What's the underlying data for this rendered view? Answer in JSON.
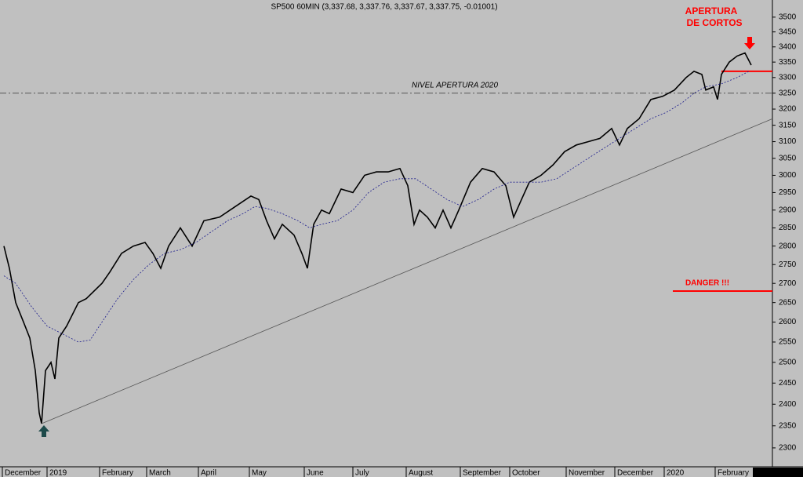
{
  "chart_data": {
    "type": "line",
    "title": "SP500 60MIN (3,337.68, 3,337.76, 3,337.67, 3,337.75, -0.01001)",
    "log_scale": true,
    "grid": false,
    "background": "#c0c0c0",
    "xlim": [
      0,
      985
    ],
    "ylim": [
      2258,
      3559
    ],
    "yticks": [
      2300,
      2350,
      2400,
      2450,
      2500,
      2550,
      2600,
      2650,
      2700,
      2750,
      2800,
      2850,
      2900,
      2950,
      3000,
      3050,
      3100,
      3150,
      3200,
      3250,
      3300,
      3350,
      3400,
      3450,
      3500
    ],
    "xticks": [
      {
        "value": 3,
        "label": "December"
      },
      {
        "value": 60,
        "label": "2019"
      },
      {
        "value": 127,
        "label": "February"
      },
      {
        "value": 187,
        "label": "March"
      },
      {
        "value": 253,
        "label": "April"
      },
      {
        "value": 318,
        "label": "May"
      },
      {
        "value": 388,
        "label": "June"
      },
      {
        "value": 450,
        "label": "July"
      },
      {
        "value": 518,
        "label": "August"
      },
      {
        "value": 587,
        "label": "September"
      },
      {
        "value": 650,
        "label": "October"
      },
      {
        "value": 722,
        "label": "November"
      },
      {
        "value": 784,
        "label": "December"
      },
      {
        "value": 847,
        "label": "2020"
      },
      {
        "value": 912,
        "label": "February"
      }
    ],
    "series": [
      {
        "color": "#000000",
        "style": "solid",
        "x": [
          5,
          12,
          20,
          30,
          38,
          45,
          50,
          53,
          58,
          65,
          70,
          75,
          85,
          100,
          110,
          130,
          140,
          155,
          170,
          185,
          195,
          205,
          215,
          230,
          245,
          260,
          280,
          300,
          320,
          330,
          340,
          350,
          360,
          375,
          385,
          392,
          400,
          410,
          420,
          435,
          450,
          465,
          480,
          495,
          510,
          520,
          528,
          535,
          545,
          555,
          565,
          575,
          585,
          600,
          615,
          630,
          645,
          655,
          665,
          675,
          690,
          705,
          720,
          735,
          750,
          765,
          780,
          790,
          800,
          815,
          830,
          845,
          860,
          875,
          885,
          895,
          900,
          910,
          915,
          920,
          930,
          940,
          950,
          958
        ],
        "values": [
          2800,
          2740,
          2650,
          2600,
          2560,
          2480,
          2380,
          2355,
          2480,
          2500,
          2460,
          2560,
          2590,
          2650,
          2660,
          2700,
          2730,
          2780,
          2800,
          2810,
          2780,
          2740,
          2800,
          2850,
          2800,
          2870,
          2880,
          2910,
          2940,
          2930,
          2870,
          2820,
          2860,
          2830,
          2780,
          2740,
          2860,
          2900,
          2890,
          2960,
          2950,
          3000,
          3010,
          3010,
          3020,
          2970,
          2860,
          2900,
          2880,
          2850,
          2900,
          2850,
          2900,
          2980,
          3020,
          3010,
          2970,
          2880,
          2930,
          2980,
          3000,
          3030,
          3070,
          3090,
          3100,
          3110,
          3140,
          3090,
          3140,
          3170,
          3230,
          3240,
          3260,
          3300,
          3320,
          3310,
          3260,
          3270,
          3230,
          3310,
          3350,
          3370,
          3380,
          3340
        ]
      },
      {
        "color": "#1a1a8c",
        "style": "dotted",
        "x": [
          5,
          20,
          40,
          60,
          80,
          100,
          115,
          130,
          150,
          170,
          190,
          210,
          230,
          250,
          270,
          290,
          310,
          325,
          340,
          360,
          380,
          395,
          410,
          430,
          450,
          470,
          490,
          510,
          530,
          550,
          570,
          590,
          610,
          630,
          650,
          670,
          690,
          710,
          730,
          750,
          770,
          790,
          810,
          830,
          850,
          870,
          885,
          900,
          920,
          940,
          955
        ],
        "values": [
          2720,
          2700,
          2640,
          2590,
          2570,
          2550,
          2555,
          2600,
          2660,
          2710,
          2750,
          2780,
          2790,
          2810,
          2840,
          2870,
          2890,
          2910,
          2905,
          2890,
          2870,
          2850,
          2860,
          2870,
          2900,
          2950,
          2980,
          2990,
          2990,
          2960,
          2930,
          2910,
          2930,
          2960,
          2980,
          2980,
          2980,
          2990,
          3020,
          3050,
          3080,
          3110,
          3140,
          3170,
          3190,
          3220,
          3250,
          3270,
          3280,
          3300,
          3320
        ]
      },
      {
        "color": "#555555",
        "style": "solid",
        "x": [
          53,
          985
        ],
        "values": [
          2355,
          3170
        ]
      }
    ],
    "reference_lines": [
      {
        "value": 3250,
        "x": [
          0,
          985
        ],
        "label": "NIVEL APERTURA 2020",
        "color": "#555555",
        "style": "dashdot"
      },
      {
        "value": 3320,
        "x": [
          920,
          985
        ],
        "color": "#ff0000",
        "style": "solid"
      },
      {
        "value": 2680,
        "x": [
          858,
          985
        ],
        "label": "DANGER !!!",
        "color": "#ff0000",
        "style": "solid"
      }
    ],
    "annotation": [
      "APERTURA",
      "DE CORTOS"
    ]
  }
}
